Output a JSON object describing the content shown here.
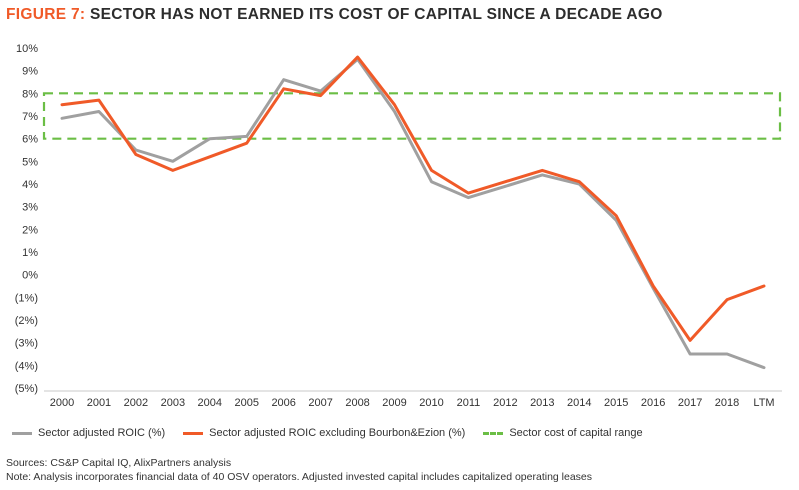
{
  "title": {
    "figure_label": "FIGURE 7:",
    "text": "SECTOR HAS NOT EARNED ITS COST OF CAPITAL SINCE A DECADE AGO"
  },
  "colors": {
    "title_accent": "#F05A28",
    "series_grey": "#A0A0A0",
    "series_orange": "#F05A28",
    "band_green": "#6BBE45"
  },
  "chart_data": {
    "type": "line",
    "categories": [
      "2000",
      "2001",
      "2002",
      "2003",
      "2004",
      "2005",
      "2006",
      "2007",
      "2008",
      "2009",
      "2010",
      "2011",
      "2012",
      "2013",
      "2014",
      "2015",
      "2016",
      "2017",
      "2018",
      "LTM"
    ],
    "y_tick_labels": [
      "10%",
      "9%",
      "8%",
      "7%",
      "6%",
      "5%",
      "4%",
      "3%",
      "2%",
      "1%",
      "0%",
      "(1%)",
      "(2%)",
      "(3%)",
      "(4%)",
      "(5%)"
    ],
    "y_tick_values": [
      10,
      9,
      8,
      7,
      6,
      5,
      4,
      3,
      2,
      1,
      0,
      -1,
      -2,
      -3,
      -4,
      -5
    ],
    "ylim": [
      -5,
      10
    ],
    "series": [
      {
        "name": "Sector adjusted ROIC (%)",
        "color": "#A0A0A0",
        "values": [
          6.9,
          7.2,
          5.5,
          5.0,
          6.0,
          6.1,
          8.6,
          8.1,
          9.5,
          7.2,
          4.1,
          3.4,
          3.9,
          4.4,
          4.0,
          2.4,
          -0.6,
          -3.5,
          -3.5,
          -4.1
        ]
      },
      {
        "name": "Sector adjusted  ROIC excluding Bourbon&Ezion (%)",
        "color": "#F05A28",
        "values": [
          7.5,
          7.7,
          5.3,
          4.6,
          5.2,
          5.8,
          8.2,
          7.9,
          9.6,
          7.5,
          4.6,
          3.6,
          4.1,
          4.6,
          4.1,
          2.6,
          -0.5,
          -2.9,
          -1.1,
          -0.5
        ]
      }
    ],
    "band": {
      "name": "Sector cost of capital range",
      "color": "#6BBE45",
      "low": 6,
      "high": 8
    },
    "grid": false,
    "legend_position": "bottom"
  },
  "notes": {
    "sources": "Sources: CS&P Capital IQ, AlixPartners analysis",
    "note": "Note: Analysis incorporates financial data of 40 OSV operators. Adjusted invested capital includes capitalized operating leases"
  }
}
